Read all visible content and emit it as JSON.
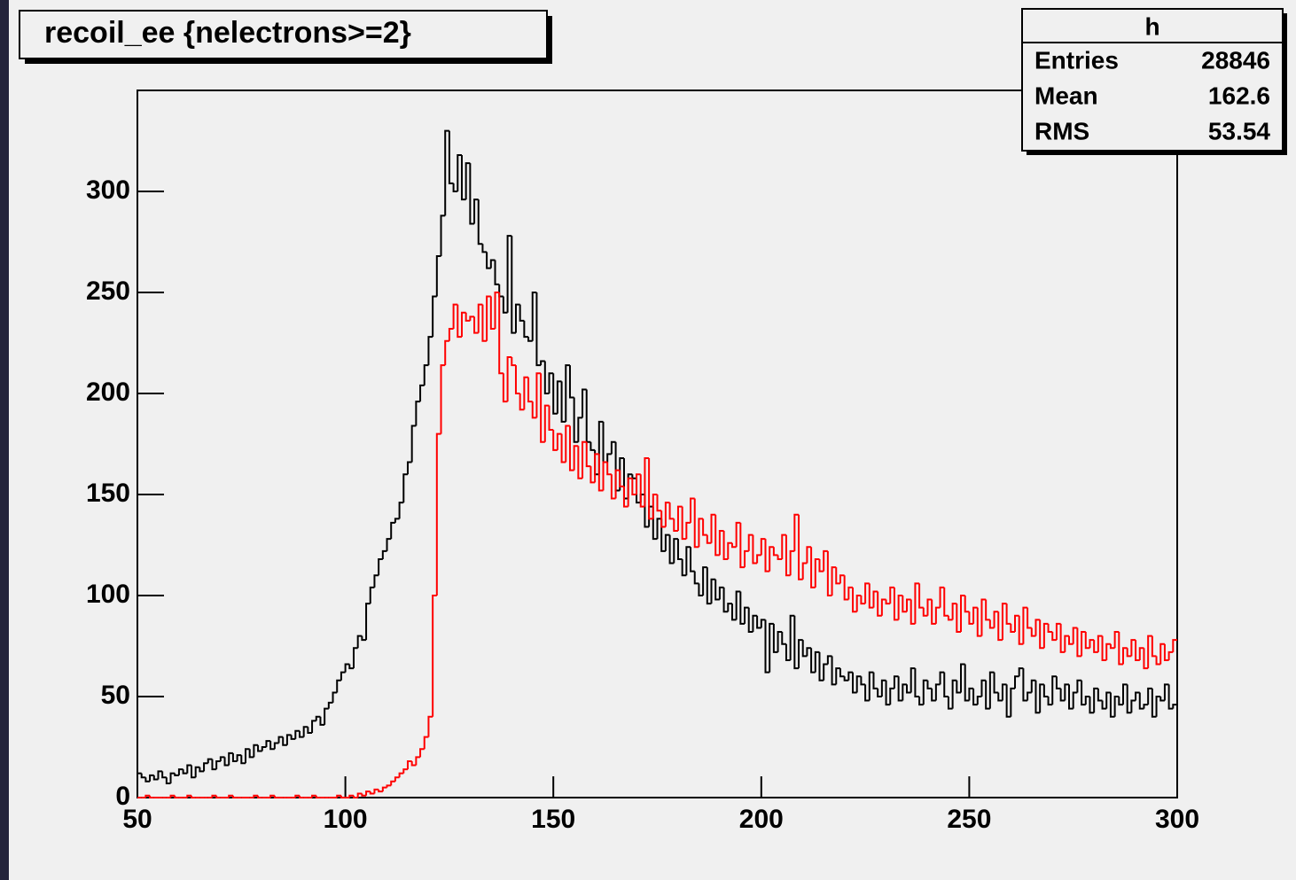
{
  "chart_data": {
    "type": "histogram",
    "title": "recoil_ee {nelectrons>=2}",
    "stats": {
      "name": "h",
      "rows": [
        [
          "Entries",
          "28846"
        ],
        [
          "Mean",
          "162.6"
        ],
        [
          "RMS",
          "53.54"
        ]
      ]
    },
    "bins": [
      50,
      51,
      52,
      53,
      54,
      55,
      56,
      57,
      58,
      59,
      60,
      61,
      62,
      63,
      64,
      65,
      66,
      67,
      68,
      69,
      70,
      71,
      72,
      73,
      74,
      75,
      76,
      77,
      78,
      79,
      80,
      81,
      82,
      83,
      84,
      85,
      86,
      87,
      88,
      89,
      90,
      91,
      92,
      93,
      94,
      95,
      96,
      97,
      98,
      99,
      100,
      101,
      102,
      103,
      104,
      105,
      106,
      107,
      108,
      109,
      110,
      111,
      112,
      113,
      114,
      115,
      116,
      117,
      118,
      119,
      120,
      121,
      122,
      123,
      124,
      125,
      126,
      127,
      128,
      129,
      130,
      131,
      132,
      133,
      134,
      135,
      136,
      137,
      138,
      139,
      140,
      141,
      142,
      143,
      144,
      145,
      146,
      147,
      148,
      149,
      150,
      151,
      152,
      153,
      154,
      155,
      156,
      157,
      158,
      159,
      160,
      161,
      162,
      163,
      164,
      165,
      166,
      167,
      168,
      169,
      170,
      171,
      172,
      173,
      174,
      175,
      176,
      177,
      178,
      179,
      180,
      181,
      182,
      183,
      184,
      185,
      186,
      187,
      188,
      189,
      190,
      191,
      192,
      193,
      194,
      195,
      196,
      197,
      198,
      199,
      200,
      201,
      202,
      203,
      204,
      205,
      206,
      207,
      208,
      209,
      210,
      211,
      212,
      213,
      214,
      215,
      216,
      217,
      218,
      219,
      220,
      221,
      222,
      223,
      224,
      225,
      226,
      227,
      228,
      229,
      230,
      231,
      232,
      233,
      234,
      235,
      236,
      237,
      238,
      239,
      240,
      241,
      242,
      243,
      244,
      245,
      246,
      247,
      248,
      249,
      250,
      251,
      252,
      253,
      254,
      255,
      256,
      257,
      258,
      259,
      260,
      261,
      262,
      263,
      264,
      265,
      266,
      267,
      268,
      269,
      270,
      271,
      272,
      273,
      274,
      275,
      276,
      277,
      278,
      279,
      280,
      281,
      282,
      283,
      284,
      285,
      286,
      287,
      288,
      289,
      290,
      291,
      292,
      293,
      294,
      295,
      296,
      297,
      298,
      299,
      300
    ],
    "series": [
      {
        "color": "#000000",
        "values": [
          12,
          10,
          8,
          11,
          9,
          13,
          10,
          7,
          12,
          11,
          14,
          12,
          16,
          10,
          15,
          13,
          17,
          19,
          14,
          18,
          20,
          16,
          22,
          18,
          21,
          17,
          24,
          20,
          26,
          23,
          25,
          28,
          24,
          27,
          30,
          26,
          31,
          29,
          33,
          30,
          35,
          32,
          38,
          40,
          36,
          44,
          47,
          52,
          58,
          62,
          66,
          64,
          74,
          80,
          78,
          96,
          104,
          110,
          118,
          122,
          128,
          136,
          138,
          146,
          160,
          166,
          184,
          196,
          204,
          214,
          228,
          248,
          268,
          288,
          330,
          304,
          300,
          318,
          296,
          314,
          284,
          296,
          274,
          270,
          262,
          266,
          254,
          248,
          240,
          278,
          230,
          244,
          236,
          228,
          226,
          250,
          214,
          216,
          200,
          210,
          190,
          206,
          186,
          214,
          198,
          176,
          188,
          202,
          176,
          172,
          160,
          186,
          166,
          170,
          176,
          152,
          168,
          148,
          160,
          158,
          146,
          150,
          134,
          144,
          128,
          138,
          122,
          130,
          116,
          128,
          118,
          110,
          124,
          112,
          106,
          100,
          114,
          96,
          108,
          98,
          104,
          92,
          96,
          88,
          102,
          86,
          94,
          82,
          90,
          84,
          88,
          62,
          86,
          72,
          82,
          76,
          68,
          90,
          64,
          78,
          70,
          74,
          62,
          72,
          58,
          66,
          70,
          56,
          64,
          60,
          58,
          62,
          52,
          60,
          56,
          48,
          62,
          54,
          50,
          58,
          46,
          54,
          60,
          48,
          56,
          52,
          64,
          50,
          46,
          58,
          54,
          48,
          56,
          62,
          50,
          44,
          58,
          52,
          66,
          48,
          54,
          46,
          50,
          58,
          44,
          62,
          52,
          48,
          56,
          40,
          54,
          60,
          64,
          48,
          52,
          58,
          42,
          56,
          50,
          46,
          60,
          54,
          48,
          56,
          44,
          52,
          58,
          46,
          50,
          42,
          54,
          48,
          44,
          52,
          40,
          50,
          46,
          56,
          42,
          48,
          52,
          44,
          46,
          54,
          40,
          50,
          48,
          56,
          44,
          46,
          42,
          60
        ]
      },
      {
        "color": "#ff0000",
        "values": [
          0,
          0,
          1,
          0,
          0,
          0,
          0,
          0,
          1,
          0,
          0,
          0,
          1,
          0,
          0,
          0,
          0,
          0,
          1,
          0,
          0,
          0,
          1,
          0,
          0,
          0,
          0,
          0,
          1,
          0,
          0,
          0,
          1,
          0,
          0,
          0,
          0,
          0,
          1,
          0,
          0,
          0,
          1,
          0,
          0,
          0,
          0,
          0,
          1,
          0,
          0,
          1,
          0,
          2,
          1,
          3,
          2,
          4,
          3,
          5,
          6,
          8,
          10,
          12,
          14,
          18,
          16,
          20,
          24,
          30,
          40,
          100,
          180,
          214,
          226,
          232,
          244,
          228,
          240,
          236,
          238,
          230,
          244,
          226,
          248,
          232,
          250,
          210,
          196,
          218,
          214,
          200,
          192,
          208,
          196,
          188,
          210,
          176,
          194,
          182,
          172,
          180,
          166,
          184,
          162,
          174,
          158,
          176,
          164,
          156,
          170,
          152,
          166,
          160,
          148,
          162,
          154,
          144,
          158,
          150,
          160,
          144,
          168,
          138,
          150,
          142,
          134,
          146,
          138,
          132,
          144,
          128,
          136,
          148,
          124,
          138,
          130,
          126,
          140,
          120,
          132,
          118,
          126,
          124,
          136,
          114,
          122,
          130,
          116,
          120,
          128,
          112,
          124,
          120,
          118,
          130,
          110,
          122,
          140,
          108,
          116,
          124,
          104,
          118,
          112,
          122,
          100,
          114,
          106,
          110,
          98,
          104,
          92,
          100,
          96,
          106,
          94,
          102,
          90,
          98,
          96,
          104,
          88,
          100,
          92,
          98,
          86,
          106,
          94,
          90,
          98,
          86,
          94,
          104,
          90,
          88,
          96,
          82,
          100,
          92,
          86,
          94,
          80,
          98,
          88,
          84,
          92,
          78,
          96,
          86,
          82,
          90,
          76,
          94,
          84,
          80,
          88,
          74,
          86,
          82,
          78,
          86,
          72,
          80,
          76,
          84,
          70,
          82,
          74,
          78,
          72,
          80,
          68,
          76,
          74,
          82,
          66,
          74,
          70,
          78,
          68,
          74,
          64,
          80,
          70,
          66,
          76,
          68,
          72,
          78
        ]
      }
    ],
    "xlim": [
      50,
      300
    ],
    "xticks": [
      50,
      100,
      150,
      200,
      250,
      300
    ],
    "ylim": [
      0,
      350
    ],
    "yticks": [
      0,
      50,
      100,
      150,
      200,
      250,
      300
    ]
  }
}
